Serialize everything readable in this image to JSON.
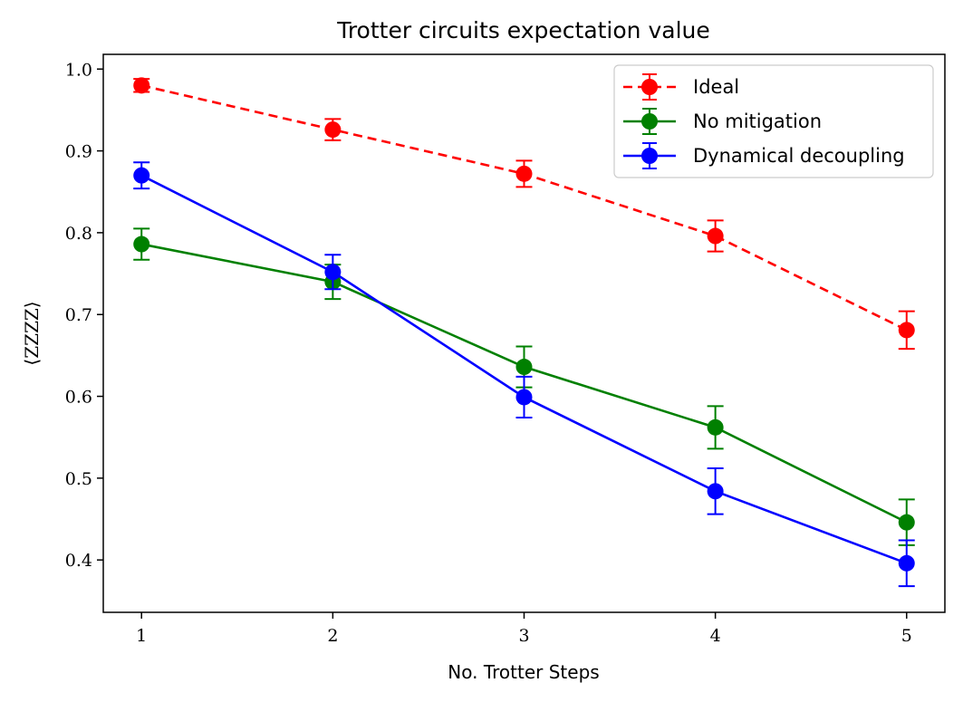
{
  "chart_data": {
    "type": "line",
    "title": "Trotter circuits expectation value",
    "xlabel": "No. Trotter Steps",
    "ylabel": "⟨ZZZZ⟩",
    "x": [
      1,
      2,
      3,
      4,
      5
    ],
    "xlim": [
      0.8,
      5.2
    ],
    "ylim": [
      0.336,
      1.018
    ],
    "xticks": [
      "1",
      "2",
      "3",
      "4",
      "5"
    ],
    "yticks": [
      "0.4",
      "0.5",
      "0.6",
      "0.7",
      "0.8",
      "0.9",
      "1.0"
    ],
    "grid": false,
    "legend_position": "top-right",
    "series": [
      {
        "name": "Ideal",
        "color": "#ff0000",
        "linestyle": "dashed",
        "values": [
          0.98,
          0.926,
          0.872,
          0.796,
          0.681
        ],
        "errors": [
          0.008,
          0.013,
          0.016,
          0.019,
          0.023
        ]
      },
      {
        "name": "No mitigation",
        "color": "#008000",
        "linestyle": "solid",
        "values": [
          0.786,
          0.74,
          0.636,
          0.562,
          0.446
        ],
        "errors": [
          0.019,
          0.021,
          0.025,
          0.026,
          0.028
        ]
      },
      {
        "name": "Dynamical decoupling",
        "color": "#0000ff",
        "linestyle": "solid",
        "values": [
          0.87,
          0.752,
          0.599,
          0.484,
          0.396
        ],
        "errors": [
          0.016,
          0.021,
          0.025,
          0.028,
          0.028
        ]
      }
    ]
  }
}
